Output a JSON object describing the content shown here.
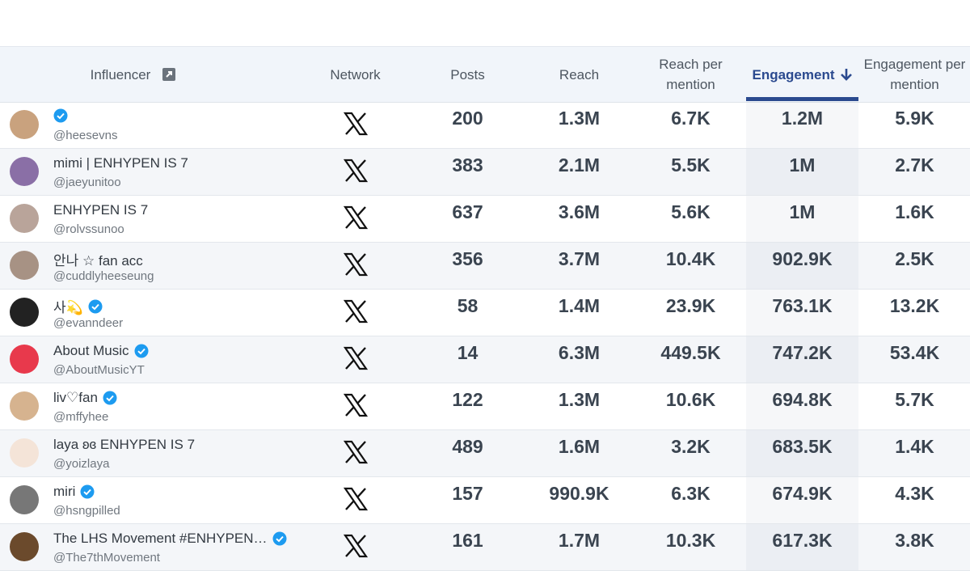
{
  "table": {
    "columns": [
      "Influencer",
      "Network",
      "Posts",
      "Reach",
      "Reach per mention",
      "Engagement",
      "Engagement per mention"
    ],
    "sorted_by": 5,
    "rows": [
      {
        "handle": "@heesevns",
        "verified": true,
        "posts": "200",
        "reach": "1.3M",
        "reach_per_mention": "6.7K",
        "engagement": "1.2M",
        "engagement_per_mention": "5.9K"
      },
      {
        "name": "mimi | ENHYPEN IS 7",
        "handle": "@jaeyunitoo",
        "verified": false,
        "posts": "383",
        "reach": "2.1M",
        "reach_per_mention": "5.5K",
        "engagement": "1M",
        "engagement_per_mention": "2.7K"
      },
      {
        "name": "ENHYPEN IS 7",
        "handle": "@rolvssunoo",
        "verified": false,
        "posts": "637",
        "reach": "3.6M",
        "reach_per_mention": "5.6K",
        "engagement": "1M",
        "engagement_per_mention": "1.6K"
      },
      {
        "name": "안나 ☆ fan acc",
        "handle": "@cuddlyheeseung",
        "verified": false,
        "posts": "356",
        "reach": "3.7M",
        "reach_per_mention": "10.4K",
        "engagement": "902.9K",
        "engagement_per_mention": "2.5K"
      },
      {
        "name": "사💫",
        "handle": "@evanndeer",
        "verified": true,
        "posts": "58",
        "reach": "1.4M",
        "reach_per_mention": "23.9K",
        "engagement": "763.1K",
        "engagement_per_mention": "13.2K"
      },
      {
        "name": "About Music",
        "handle": "@AboutMusicYT",
        "verified": true,
        "posts": "14",
        "reach": "6.3M",
        "reach_per_mention": "449.5K",
        "engagement": "747.2K",
        "engagement_per_mention": "53.4K"
      },
      {
        "name": "liv♡fan",
        "handle": "@mffyhee",
        "verified": true,
        "posts": "122",
        "reach": "1.3M",
        "reach_per_mention": "10.6K",
        "engagement": "694.8K",
        "engagement_per_mention": "5.7K"
      },
      {
        "name": "laya ʚɞ ENHYPEN IS 7",
        "handle": "@yoizlaya",
        "verified": false,
        "posts": "489",
        "reach": "1.6M",
        "reach_per_mention": "3.2K",
        "engagement": "683.5K",
        "engagement_per_mention": "1.4K"
      },
      {
        "name": "miri",
        "handle": "@hsngpilled",
        "verified": true,
        "posts": "157",
        "reach": "990.9K",
        "reach_per_mention": "6.3K",
        "engagement": "674.9K",
        "engagement_per_mention": "4.3K"
      },
      {
        "name": "The LHS Movement #ENHYPEN…",
        "handle": "@The7thMovement",
        "verified": true,
        "posts": "161",
        "reach": "1.7M",
        "reach_per_mention": "10.3K",
        "engagement": "617.3K",
        "engagement_per_mention": "3.8K"
      }
    ]
  }
}
